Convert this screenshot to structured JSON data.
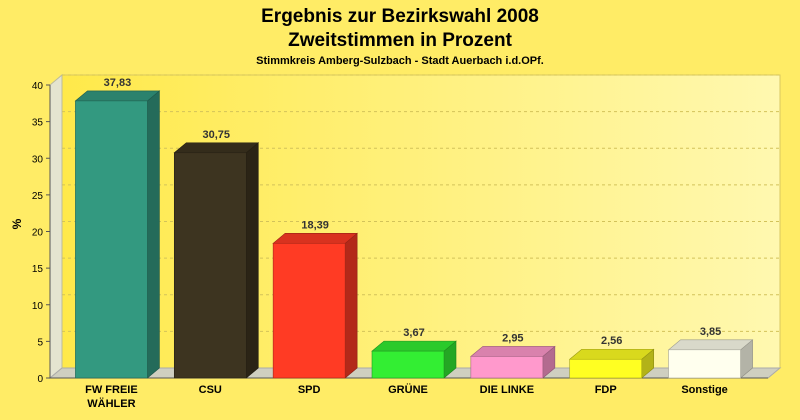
{
  "chart_data": {
    "type": "bar",
    "title": "Ergebnis zur Bezirkswahl 2008",
    "subtitle": "Zweitstimmen in Prozent",
    "caption": "Stimmkreis Amberg-Sulzbach - Stadt Auerbach i.d.OPf.",
    "ylabel": "%",
    "xlabel": "",
    "ylim": [
      0,
      40
    ],
    "yticks": [
      0,
      5,
      10,
      15,
      20,
      25,
      30,
      35,
      40
    ],
    "grid": true,
    "categories": [
      "FW FREIE WÄHLER",
      "CSU",
      "SPD",
      "GRÜNE",
      "DIE LINKE",
      "FDP",
      "Sonstige"
    ],
    "category_lines": [
      [
        "FW FREIE",
        "WÄHLER"
      ],
      [
        "CSU"
      ],
      [
        "SPD"
      ],
      [
        "GRÜNE"
      ],
      [
        "DIE LINKE"
      ],
      [
        "FDP"
      ],
      [
        "Sonstige"
      ]
    ],
    "values": [
      37.83,
      30.75,
      18.39,
      3.67,
      2.95,
      2.56,
      3.85
    ],
    "value_labels": [
      "37,83",
      "30,75",
      "18,39",
      "3,67",
      "2,95",
      "2,56",
      "3,85"
    ],
    "colors": [
      "#339980",
      "#3d3420",
      "#ff3b24",
      "#33ee33",
      "#ff99cc",
      "#ffff22",
      "#ffffee"
    ]
  }
}
